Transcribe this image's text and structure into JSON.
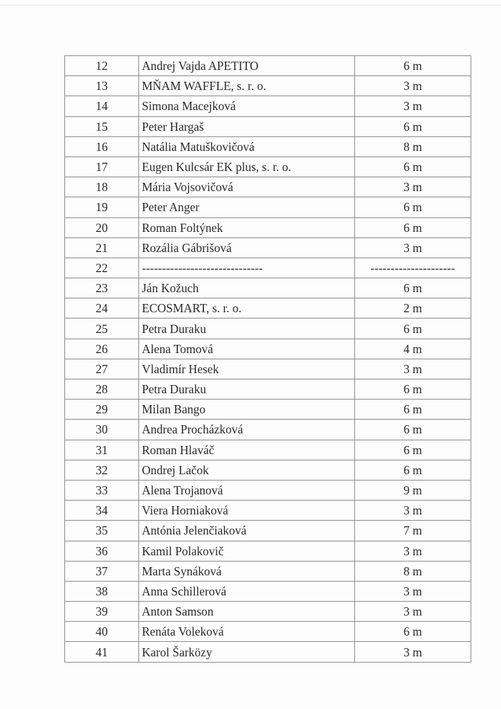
{
  "rows": [
    {
      "no": "12",
      "name": "Andrej Vajda APETITO",
      "length": "6 m"
    },
    {
      "no": "13",
      "name": "MŇAM WAFFLE, s. r. o.",
      "length": "3 m"
    },
    {
      "no": "14",
      "name": "Simona Macejková",
      "length": "3 m"
    },
    {
      "no": "15",
      "name": "Peter Hargaš",
      "length": "6 m"
    },
    {
      "no": "16",
      "name": "Natália Matuškovičová",
      "length": "8 m"
    },
    {
      "no": "17",
      "name": "Eugen Kulcsár EK plus, s. r. o.",
      "length": "6 m"
    },
    {
      "no": "18",
      "name": "Mária Vojsovičová",
      "length": "3 m"
    },
    {
      "no": "19",
      "name": "Peter Anger",
      "length": "6 m"
    },
    {
      "no": "20",
      "name": "Roman Foltýnek",
      "length": "6 m"
    },
    {
      "no": "21",
      "name": "Rozália Gábrišová",
      "length": "3 m"
    },
    {
      "no": "22",
      "name": "------------------------------",
      "length": "---------------------"
    },
    {
      "no": "23",
      "name": "Ján Kožuch",
      "length": "6 m"
    },
    {
      "no": "24",
      "name": "ECOSMART, s. r. o.",
      "length": "2 m"
    },
    {
      "no": "25",
      "name": "Petra Duraku",
      "length": "6 m"
    },
    {
      "no": "26",
      "name": "Alena Tomová",
      "length": "4 m"
    },
    {
      "no": "27",
      "name": "Vladimír Hesek",
      "length": "3 m"
    },
    {
      "no": "28",
      "name": "Petra Duraku",
      "length": "6 m"
    },
    {
      "no": "29",
      "name": "Milan Bango",
      "length": "6 m"
    },
    {
      "no": "30",
      "name": "Andrea Procházková",
      "length": "6 m"
    },
    {
      "no": "31",
      "name": "Roman Hlaváč",
      "length": "6 m"
    },
    {
      "no": "32",
      "name": "Ondrej Lačok",
      "length": "6 m"
    },
    {
      "no": "33",
      "name": "Alena Trojanová",
      "length": "9 m"
    },
    {
      "no": "34",
      "name": "Viera Horniaková",
      "length": "3 m"
    },
    {
      "no": "35",
      "name": "Antónia Jelenčiaková",
      "length": "7 m"
    },
    {
      "no": "36",
      "name": "Kamil Polakovič",
      "length": "3 m"
    },
    {
      "no": "37",
      "name": "Marta Synáková",
      "length": "8 m"
    },
    {
      "no": "38",
      "name": "Anna Schillerová",
      "length": "3 m"
    },
    {
      "no": "39",
      "name": "Anton Samson",
      "length": "3 m"
    },
    {
      "no": "40",
      "name": "Renáta Voleková",
      "length": "6 m"
    },
    {
      "no": "41",
      "name": "Karol Šarközy",
      "length": "3 m"
    }
  ]
}
